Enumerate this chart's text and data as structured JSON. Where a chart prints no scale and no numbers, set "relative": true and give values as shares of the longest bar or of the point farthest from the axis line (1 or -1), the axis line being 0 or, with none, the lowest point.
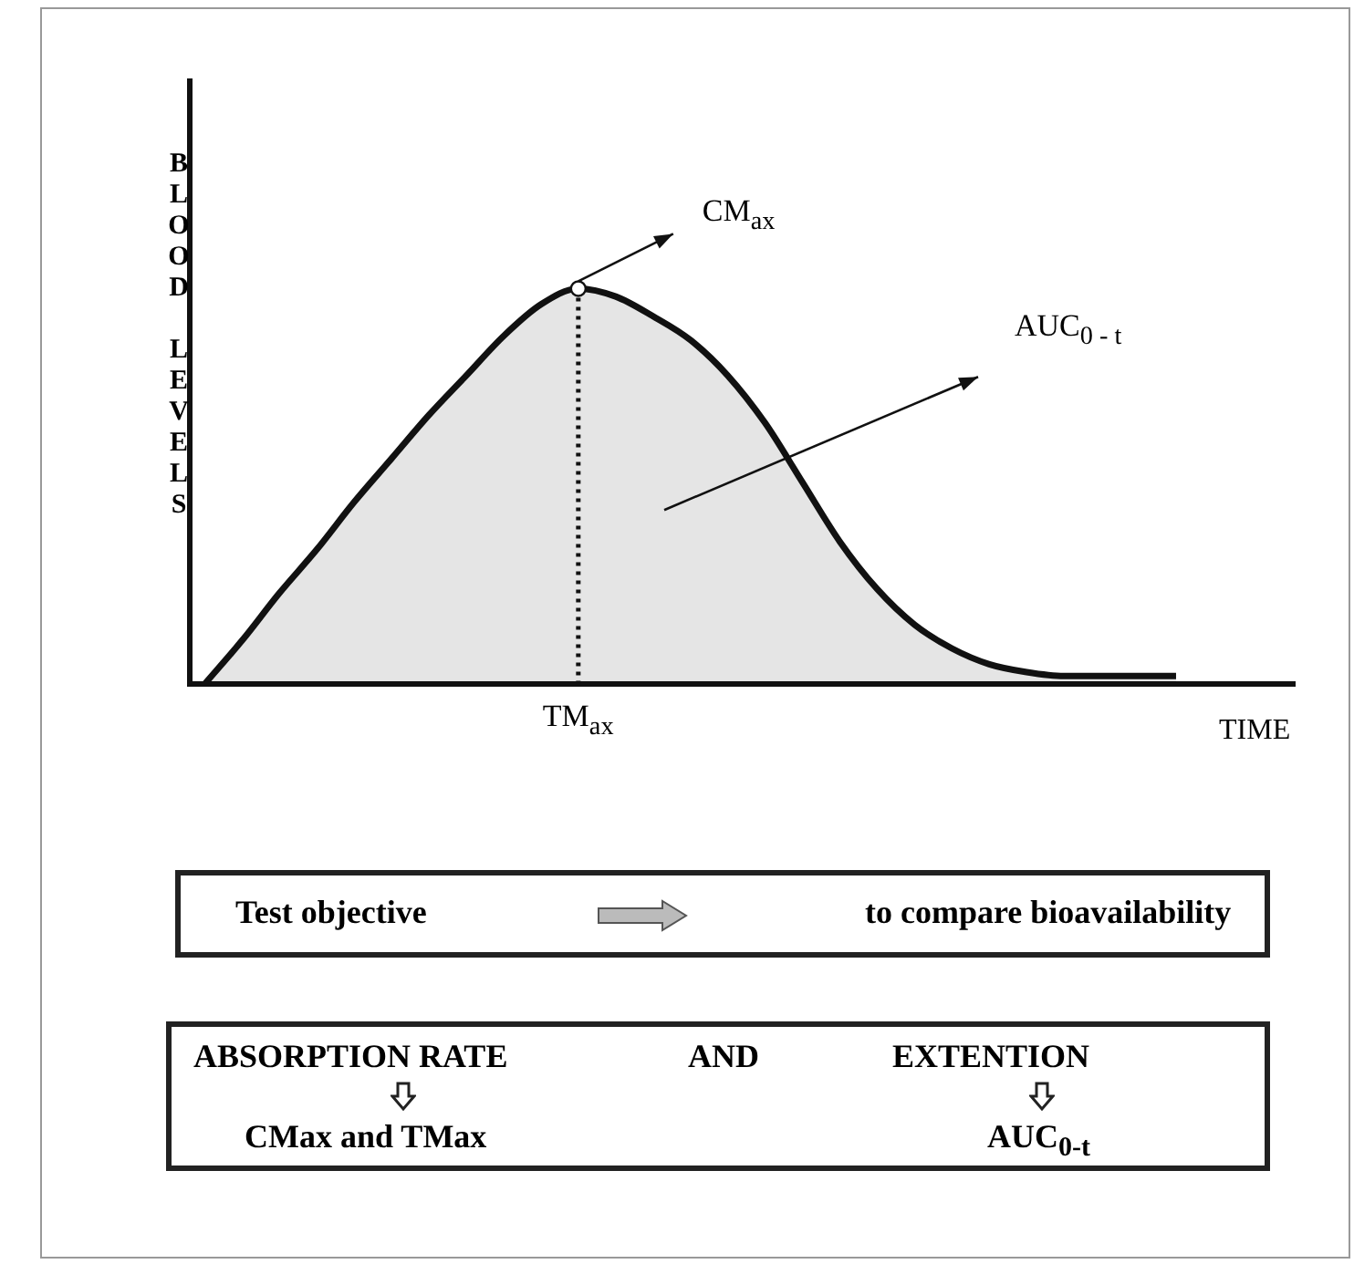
{
  "chart_data": {
    "type": "area",
    "relative": true,
    "xlabel": "TIME",
    "ylabel": "BLOOD LEVELS",
    "categories": [
      null,
      null,
      null,
      null,
      null,
      null,
      null,
      null,
      null,
      null,
      null,
      null,
      null,
      null,
      null,
      null,
      null,
      null,
      null,
      null,
      null,
      null,
      null,
      null,
      null,
      null,
      null,
      null,
      null,
      null
    ],
    "series": [
      {
        "color": "#111111",
        "values": [
          0,
          0.11,
          0.23,
          0.34,
          0.46,
          0.57,
          0.68,
          0.78,
          0.88,
          0.96,
          1,
          0.98,
          0.93,
          0.87,
          0.78,
          0.66,
          0.51,
          0.36,
          0.24,
          0.15,
          0.09,
          0.05,
          0.03,
          0.02,
          0.02,
          0.02,
          0.02,
          null,
          null,
          null
        ]
      }
    ],
    "annotations": [
      "CM$_{ax}$",
      "AUC$_{0 - t}$",
      "Test objective",
      "to compare bioavailability",
      "ABSORPTION RATE",
      "AND",
      "EXTENTION",
      "CMax and TMax",
      "AUC$_{0-t}$",
      "TM$_{ax}$"
    ],
    "legend": false,
    "marker": "none",
    "line_style": "solid"
  }
}
